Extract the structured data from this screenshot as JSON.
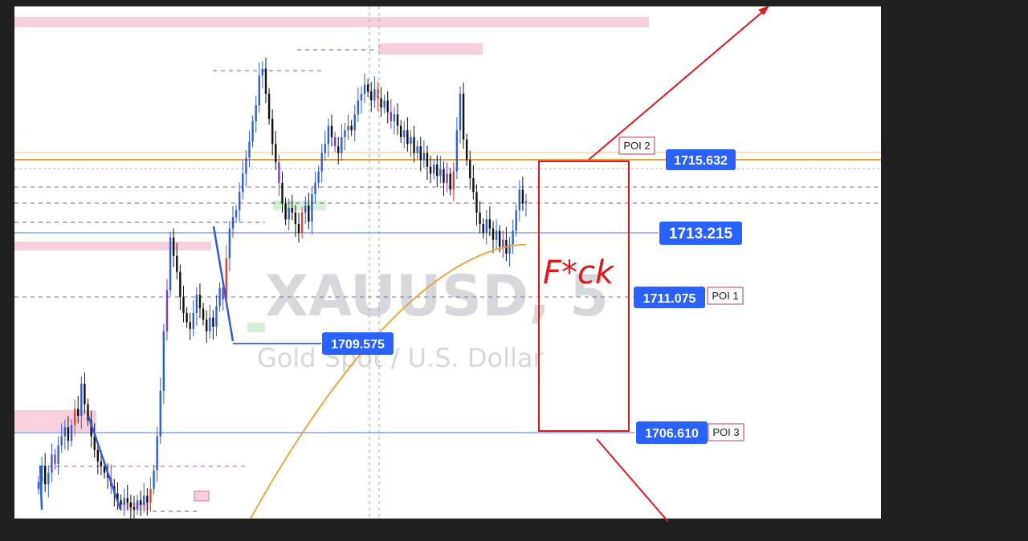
{
  "chart_data": {
    "type": "candlestick",
    "symbol": "XAUUSD",
    "timeframe": "5",
    "watermark_title": "XAUUSD, 5",
    "watermark_subtitle": "Gold Spot / U.S. Dollar",
    "price_labels": [
      {
        "label": "1715.632",
        "value": 1715.632
      },
      {
        "label": "1713.215",
        "value": 1713.215
      },
      {
        "label": "1711.075",
        "value": 1711.075
      },
      {
        "label": "1709.575",
        "value": 1709.575
      },
      {
        "label": "1706.610",
        "value": 1706.61
      }
    ],
    "annotations": {
      "poi_1": "POI 1",
      "poi_2": "POI 2",
      "poi_3": "POI 3",
      "handwritten": "F*ck"
    },
    "closes": [
      1703.2,
      1703.9,
      1703.1,
      1703.6,
      1704.4,
      1704.0,
      1704.8,
      1705.2,
      1705.6,
      1705.0,
      1705.7,
      1706.4,
      1706.1,
      1707.5,
      1706.6,
      1705.9,
      1705.2,
      1704.6,
      1704.1,
      1703.9,
      1703.6,
      1703.4,
      1703.0,
      1702.7,
      1702.4,
      1702.2,
      1702.5,
      1702.3,
      1702.1,
      1702.0,
      1702.4,
      1702.2,
      1702.6,
      1702.3,
      1702.9,
      1703.7,
      1705.2,
      1707.2,
      1709.8,
      1711.6,
      1713.9,
      1713.1,
      1712.4,
      1711.3,
      1710.6,
      1710.2,
      1709.9,
      1710.6,
      1711.4,
      1710.8,
      1710.3,
      1709.8,
      1710.4,
      1710.0,
      1710.9,
      1711.7,
      1711.2,
      1713.0,
      1714.3,
      1714.8,
      1715.1,
      1715.9,
      1716.7,
      1717.4,
      1718.1,
      1719.0,
      1719.7,
      1721.0,
      1721.3,
      1720.2,
      1719.1,
      1718.0,
      1717.2,
      1716.3,
      1715.4,
      1714.7,
      1715.2,
      1715.0,
      1714.5,
      1714.1,
      1715.0,
      1715.3,
      1714.6,
      1715.8,
      1716.3,
      1716.8,
      1717.6,
      1718.0,
      1718.8,
      1718.3,
      1717.9,
      1717.6,
      1718.3,
      1718.6,
      1718.8,
      1718.6,
      1719.3,
      1719.9,
      1720.2,
      1720.6,
      1720.3,
      1719.9,
      1720.4,
      1720.0,
      1719.6,
      1719.9,
      1719.4,
      1719.0,
      1719.3,
      1718.8,
      1718.3,
      1718.6,
      1718.0,
      1718.3,
      1717.6,
      1717.9,
      1717.3,
      1717.6,
      1717.0,
      1716.7,
      1717.1,
      1716.6,
      1716.9,
      1716.3,
      1716.7,
      1716.0,
      1716.8,
      1718.6,
      1720.2,
      1718.2,
      1717.3,
      1716.5,
      1715.9,
      1715.0,
      1714.5,
      1714.1,
      1714.7,
      1714.3,
      1713.8,
      1714.2,
      1713.5,
      1713.8,
      1713.2,
      1713.6,
      1714.2,
      1715.1,
      1716.0,
      1715.4,
      1715.5
    ],
    "moving_average": {
      "name": "",
      "start_value": 1701.6,
      "end_value": 1713.6
    },
    "price_range": [
      1701.6,
      1722.9
    ]
  },
  "colors": {
    "bull": "#2f5fd6",
    "bear": "#111111",
    "alt_up": "#7b3fbf",
    "alt_down": "#d9463a",
    "ma": "#f0a030",
    "tag_bg": "#2962ff",
    "zone": "#f8d0dc",
    "demand": "#d6f0d6",
    "drawing": "#e01a1a"
  }
}
